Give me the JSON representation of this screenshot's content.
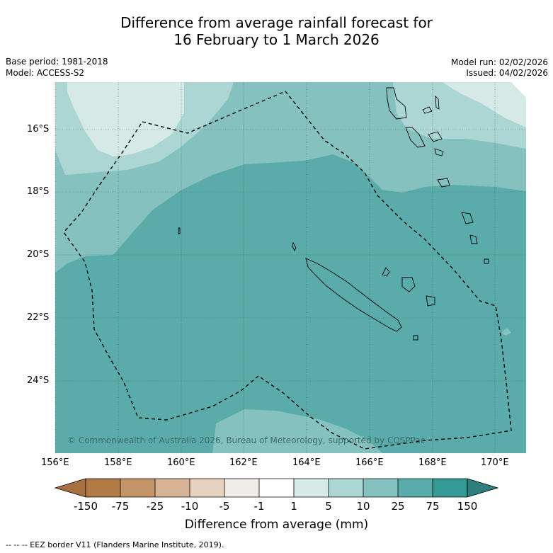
{
  "title": {
    "line1": "Difference from average rainfall forecast for",
    "line2": "16 February to 1 March 2026"
  },
  "meta": {
    "base_period": "Base period: 1981-2018",
    "model": "Model: ACCESS-S2",
    "model_run": "Model run: 02/02/2026",
    "issued": "Issued: 04/02/2026"
  },
  "axes": {
    "lon_labels": [
      "156°E",
      "158°E",
      "160°E",
      "162°E",
      "164°E",
      "166°E",
      "168°E",
      "170°E"
    ],
    "lat_labels": [
      "16°S",
      "18°S",
      "20°S",
      "22°S",
      "24°S"
    ]
  },
  "map": {
    "copyright": "© Commonwealth of Australia 2026, Bureau of Meteorology, supported by COSPPac",
    "extent": {
      "lon_min": 156,
      "lon_max": 171,
      "lat_min": -26.3,
      "lat_max": -14.5
    }
  },
  "colorbar": {
    "tick_labels": [
      "-150",
      "-75",
      "-25",
      "-10",
      "-5",
      "-1",
      "1",
      "5",
      "10",
      "25",
      "75",
      "150"
    ],
    "colors": [
      "#a87040",
      "#b07a45",
      "#c39467",
      "#d5b394",
      "#e7d2bf",
      "#efece8",
      "#ffffff",
      "#d5e9e6",
      "#acd6d3",
      "#85c2bf",
      "#5aacaa",
      "#339a96",
      "#2c7f7c"
    ],
    "label": "Difference from average (mm)"
  },
  "footnote": "--  --  -- EEZ border V11 (Flanders Marine Institute, 2019)."
}
